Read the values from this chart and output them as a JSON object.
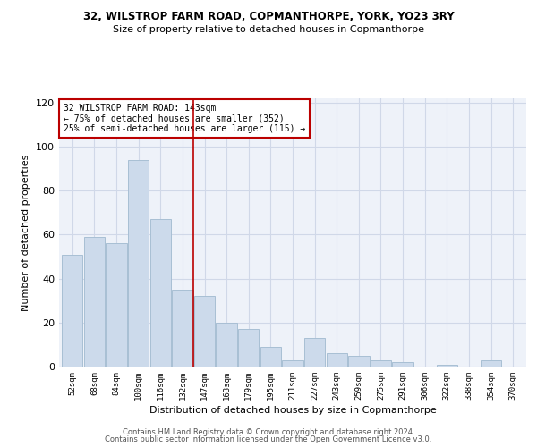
{
  "title": "32, WILSTROP FARM ROAD, COPMANTHORPE, YORK, YO23 3RY",
  "subtitle": "Size of property relative to detached houses in Copmanthorpe",
  "xlabel": "Distribution of detached houses by size in Copmanthorpe",
  "ylabel": "Number of detached properties",
  "categories": [
    "52sqm",
    "68sqm",
    "84sqm",
    "100sqm",
    "116sqm",
    "132sqm",
    "147sqm",
    "163sqm",
    "179sqm",
    "195sqm",
    "211sqm",
    "227sqm",
    "243sqm",
    "259sqm",
    "275sqm",
    "291sqm",
    "306sqm",
    "322sqm",
    "338sqm",
    "354sqm",
    "370sqm"
  ],
  "values": [
    51,
    59,
    56,
    94,
    67,
    35,
    32,
    20,
    17,
    9,
    3,
    13,
    6,
    5,
    3,
    2,
    0,
    1,
    0,
    3,
    0
  ],
  "bar_color": "#ccdaeb",
  "bar_edge_color": "#a8bfd4",
  "grid_color": "#d0d8e8",
  "bg_color": "#eef2f9",
  "vline_color": "#bb0000",
  "vline_x": 5.5,
  "annotation_text": "32 WILSTROP FARM ROAD: 143sqm\n← 75% of detached houses are smaller (352)\n25% of semi-detached houses are larger (115) →",
  "ylim": [
    0,
    122
  ],
  "yticks": [
    0,
    20,
    40,
    60,
    80,
    100,
    120
  ],
  "footer1": "Contains HM Land Registry data © Crown copyright and database right 2024.",
  "footer2": "Contains public sector information licensed under the Open Government Licence v3.0."
}
